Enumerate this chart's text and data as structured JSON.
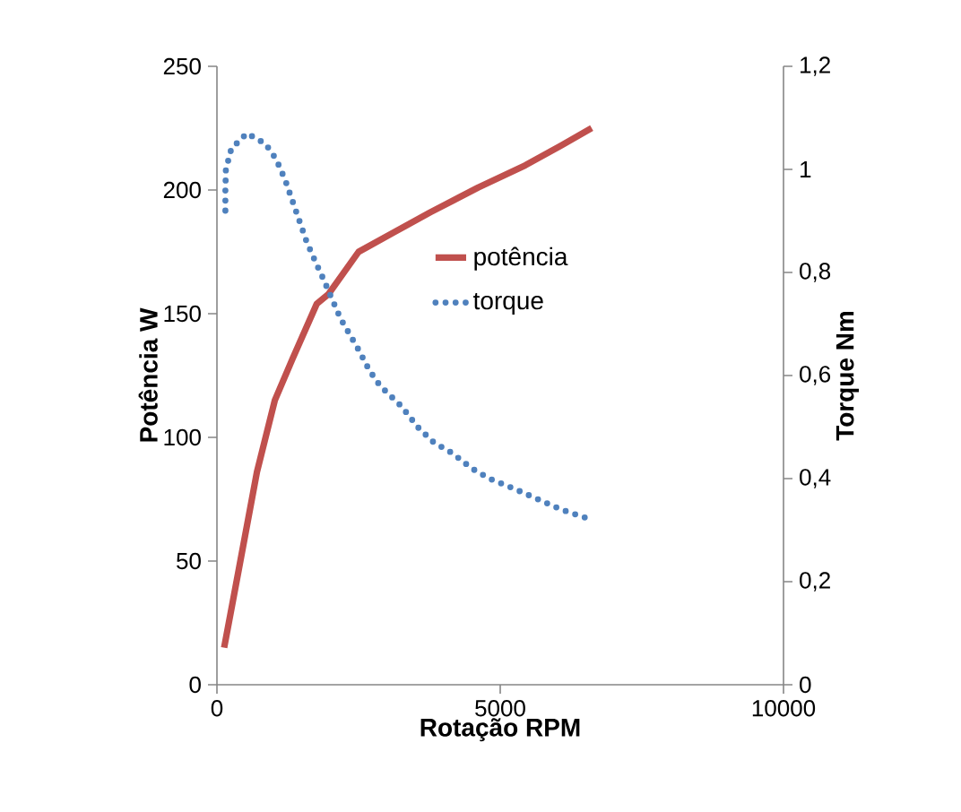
{
  "chart_data": {
    "type": "line",
    "xlabel": "Rotação RPM",
    "ylabel": "Potência W",
    "y2label": "Torque Nm",
    "xlim": [
      0,
      10000
    ],
    "xticks": [
      0,
      5000,
      10000
    ],
    "ylim": [
      0,
      250
    ],
    "yticks": [
      0,
      50,
      100,
      150,
      200,
      250
    ],
    "y2lim": [
      0,
      1.2
    ],
    "y2ticks": [
      0,
      {
        "value": 0.2,
        "label": "0,2"
      },
      {
        "value": 0.4,
        "label": "0,4"
      },
      {
        "value": 0.6,
        "label": "0,6"
      },
      {
        "value": 0.8,
        "label": "0,8"
      },
      1,
      {
        "value": 1.2,
        "label": "1,2"
      }
    ],
    "grid": false,
    "legend": "right",
    "marker": "none",
    "series": [
      {
        "name": "potência",
        "color": "#c0504d",
        "line_style": "solid",
        "x": [
          127,
          389,
          706,
          1022,
          1339,
          1762,
          1972,
          2500,
          3133,
          3766,
          4610,
          5443,
          6076,
          6614
        ],
        "values": [
          15,
          47,
          86,
          115,
          132,
          154,
          158,
          175,
          183,
          191,
          201,
          210,
          218,
          225
        ]
      },
      {
        "name": "torque",
        "color": "#4f81bd",
        "line_style": "dotted",
        "axis": "y2",
        "x": [
          149,
          149,
          158,
          253,
          528,
          854,
          1044,
          1203,
          1329,
          1456,
          1582,
          1741,
          1867,
          2025,
          2184,
          2342,
          2500,
          2690,
          2880,
          3070,
          3259,
          3544,
          3829,
          4146,
          4494,
          4810,
          5253,
          5665,
          6076,
          6614
        ],
        "values": [
          0.92,
          0.96,
          1.0,
          1.04,
          1.07,
          1.05,
          1.02,
          0.98,
          0.94,
          0.9,
          0.86,
          0.82,
          0.79,
          0.75,
          0.71,
          0.68,
          0.65,
          0.61,
          0.58,
          0.56,
          0.54,
          0.5,
          0.47,
          0.45,
          0.42,
          0.4,
          0.38,
          0.36,
          0.34,
          0.32
        ]
      }
    ]
  }
}
